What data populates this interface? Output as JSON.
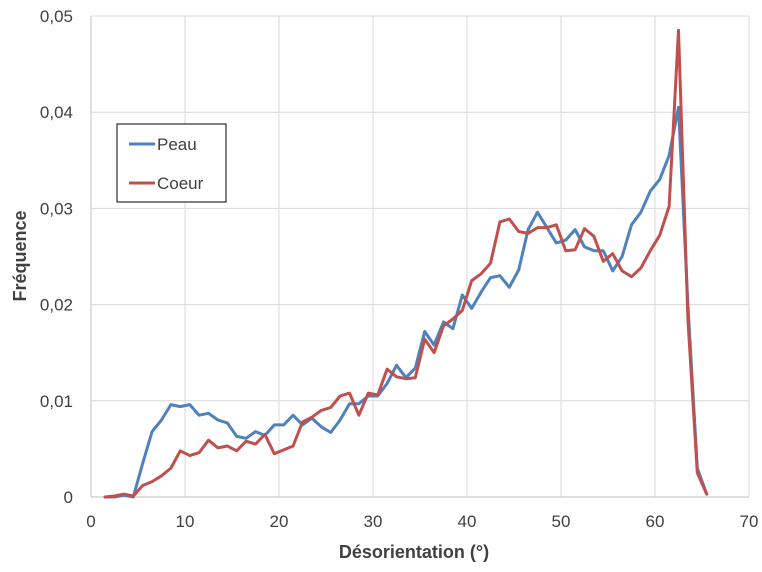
{
  "chart_data": {
    "type": "line",
    "title": "",
    "xlabel": "Désorientation (°)",
    "ylabel": "Fréquence",
    "xlim": [
      0,
      70
    ],
    "ylim": [
      0,
      0.05
    ],
    "x_ticks": [
      "0",
      "10",
      "20",
      "30",
      "40",
      "50",
      "60",
      "70"
    ],
    "y_ticks": [
      "0",
      "0,01",
      "0,02",
      "0,03",
      "0,04",
      "0,05"
    ],
    "grid": true,
    "legend_position": "upper-left",
    "series": [
      {
        "name": "Peau",
        "color": "#4F81BD",
        "points": [
          [
            1.5,
            0
          ],
          [
            2.5,
            0
          ],
          [
            3.5,
            0.0002
          ],
          [
            4.5,
            0
          ],
          [
            5.5,
            0.0035
          ],
          [
            6.5,
            0.0068
          ],
          [
            7.5,
            0.008
          ],
          [
            8.5,
            0.0096
          ],
          [
            9.5,
            0.0094
          ],
          [
            10.5,
            0.0096
          ],
          [
            11.5,
            0.0085
          ],
          [
            12.5,
            0.0087
          ],
          [
            13.5,
            0.008
          ],
          [
            14.5,
            0.0077
          ],
          [
            15.5,
            0.0063
          ],
          [
            16.5,
            0.0061
          ],
          [
            17.5,
            0.0068
          ],
          [
            18.5,
            0.0064
          ],
          [
            19.5,
            0.0075
          ],
          [
            20.5,
            0.0075
          ],
          [
            21.5,
            0.0085
          ],
          [
            22.5,
            0.0075
          ],
          [
            23.5,
            0.0082
          ],
          [
            24.5,
            0.0073
          ],
          [
            25.5,
            0.0067
          ],
          [
            26.5,
            0.008
          ],
          [
            27.5,
            0.0097
          ],
          [
            28.5,
            0.0097
          ],
          [
            29.5,
            0.0105
          ],
          [
            30.5,
            0.0105
          ],
          [
            31.5,
            0.0118
          ],
          [
            32.5,
            0.0137
          ],
          [
            33.5,
            0.0124
          ],
          [
            34.5,
            0.0134
          ],
          [
            35.5,
            0.0172
          ],
          [
            36.5,
            0.0158
          ],
          [
            37.5,
            0.0182
          ],
          [
            38.5,
            0.0175
          ],
          [
            39.5,
            0.021
          ],
          [
            40.5,
            0.0196
          ],
          [
            41.5,
            0.0213
          ],
          [
            42.5,
            0.0228
          ],
          [
            43.5,
            0.023
          ],
          [
            44.5,
            0.0218
          ],
          [
            45.5,
            0.0236
          ],
          [
            46.5,
            0.0278
          ],
          [
            47.5,
            0.0296
          ],
          [
            48.5,
            0.028
          ],
          [
            49.5,
            0.0264
          ],
          [
            50.5,
            0.0267
          ],
          [
            51.5,
            0.0278
          ],
          [
            52.5,
            0.026
          ],
          [
            53.5,
            0.0256
          ],
          [
            54.5,
            0.0256
          ],
          [
            55.5,
            0.0235
          ],
          [
            56.5,
            0.025
          ],
          [
            57.5,
            0.0283
          ],
          [
            58.5,
            0.0296
          ],
          [
            59.5,
            0.0318
          ],
          [
            60.5,
            0.033
          ],
          [
            61.5,
            0.0355
          ],
          [
            62.5,
            0.0405
          ],
          [
            63.5,
            0.02
          ],
          [
            64.5,
            0.003
          ],
          [
            65.5,
            0.0003
          ]
        ]
      },
      {
        "name": "Coeur",
        "color": "#C0504D",
        "points": [
          [
            1.5,
            0
          ],
          [
            2.5,
            0.0001
          ],
          [
            3.5,
            0.0003
          ],
          [
            4.5,
            0.0001
          ],
          [
            5.5,
            0.0012
          ],
          [
            6.5,
            0.0016
          ],
          [
            7.5,
            0.0022
          ],
          [
            8.5,
            0.003
          ],
          [
            9.5,
            0.0048
          ],
          [
            10.5,
            0.0043
          ],
          [
            11.5,
            0.0046
          ],
          [
            12.5,
            0.0059
          ],
          [
            13.5,
            0.0051
          ],
          [
            14.5,
            0.0053
          ],
          [
            15.5,
            0.0048
          ],
          [
            16.5,
            0.0058
          ],
          [
            17.5,
            0.0055
          ],
          [
            18.5,
            0.0065
          ],
          [
            19.5,
            0.0045
          ],
          [
            20.5,
            0.0049
          ],
          [
            21.5,
            0.0053
          ],
          [
            22.5,
            0.0078
          ],
          [
            23.5,
            0.0083
          ],
          [
            24.5,
            0.009
          ],
          [
            25.5,
            0.0093
          ],
          [
            26.5,
            0.0105
          ],
          [
            27.5,
            0.0108
          ],
          [
            28.5,
            0.0085
          ],
          [
            29.5,
            0.0108
          ],
          [
            30.5,
            0.0106
          ],
          [
            31.5,
            0.0133
          ],
          [
            32.5,
            0.0125
          ],
          [
            33.5,
            0.0123
          ],
          [
            34.5,
            0.0124
          ],
          [
            35.5,
            0.0164
          ],
          [
            36.5,
            0.015
          ],
          [
            37.5,
            0.0178
          ],
          [
            38.5,
            0.0185
          ],
          [
            39.5,
            0.0194
          ],
          [
            40.5,
            0.0225
          ],
          [
            41.5,
            0.0232
          ],
          [
            42.5,
            0.0243
          ],
          [
            43.5,
            0.0286
          ],
          [
            44.5,
            0.0289
          ],
          [
            45.5,
            0.0276
          ],
          [
            46.5,
            0.0274
          ],
          [
            47.5,
            0.028
          ],
          [
            48.5,
            0.028
          ],
          [
            49.5,
            0.0283
          ],
          [
            50.5,
            0.0256
          ],
          [
            51.5,
            0.0257
          ],
          [
            52.5,
            0.0279
          ],
          [
            53.5,
            0.0271
          ],
          [
            54.5,
            0.0245
          ],
          [
            55.5,
            0.0253
          ],
          [
            56.5,
            0.0235
          ],
          [
            57.5,
            0.0229
          ],
          [
            58.5,
            0.0238
          ],
          [
            59.5,
            0.0256
          ],
          [
            60.5,
            0.0272
          ],
          [
            61.5,
            0.0302
          ],
          [
            62.5,
            0.0485
          ],
          [
            63.5,
            0.0185
          ],
          [
            64.5,
            0.0025
          ],
          [
            65.5,
            0.0003
          ]
        ]
      }
    ]
  }
}
